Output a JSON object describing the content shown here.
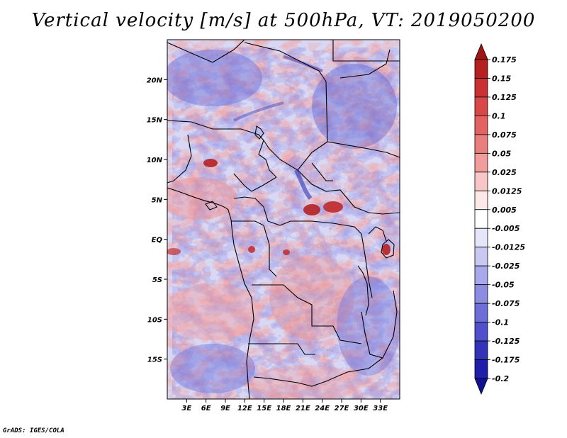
{
  "title": "Vertical velocity [m/s] at 500hPa, VT: 2019050200",
  "footer": "GrADS: IGES/COLA",
  "map": {
    "lon_range": [
      0,
      36
    ],
    "lat_range": [
      -20,
      25
    ],
    "lat_ticks": [
      {
        "value": 20,
        "label": "20N"
      },
      {
        "value": 15,
        "label": "15N"
      },
      {
        "value": 10,
        "label": "10N"
      },
      {
        "value": 5,
        "label": "5N"
      },
      {
        "value": 0,
        "label": "EQ"
      },
      {
        "value": -5,
        "label": "5S"
      },
      {
        "value": -10,
        "label": "10S"
      },
      {
        "value": -15,
        "label": "15S"
      }
    ],
    "lon_ticks": [
      {
        "value": 3,
        "label": "3E"
      },
      {
        "value": 6,
        "label": "6E"
      },
      {
        "value": 9,
        "label": "9E"
      },
      {
        "value": 12,
        "label": "12E"
      },
      {
        "value": 15,
        "label": "15E"
      },
      {
        "value": 18,
        "label": "18E"
      },
      {
        "value": 21,
        "label": "21E"
      },
      {
        "value": 24,
        "label": "24E"
      },
      {
        "value": 27,
        "label": "27E"
      },
      {
        "value": 30,
        "label": "30E"
      },
      {
        "value": 33,
        "label": "33E"
      }
    ]
  },
  "colorbar": {
    "labels": [
      "0.175",
      "0.15",
      "0.125",
      "0.1",
      "0.075",
      "0.05",
      "0.025",
      "0.0125",
      "0.005",
      "-0.005",
      "-0.0125",
      "-0.025",
      "-0.05",
      "-0.075",
      "-0.1",
      "-0.125",
      "-0.175",
      "-0.2"
    ],
    "colors": [
      "#a01515",
      "#b52020",
      "#c83232",
      "#d84848",
      "#e36262",
      "#ea7d7d",
      "#f29d9d",
      "#f8c6c6",
      "#fde8e8",
      "#ffffff",
      "#e6e6fa",
      "#c8c8f2",
      "#a8a8ea",
      "#8c8ce2",
      "#6e6ed8",
      "#5050cc",
      "#3333b8",
      "#1e1ea8",
      "#101090"
    ]
  }
}
